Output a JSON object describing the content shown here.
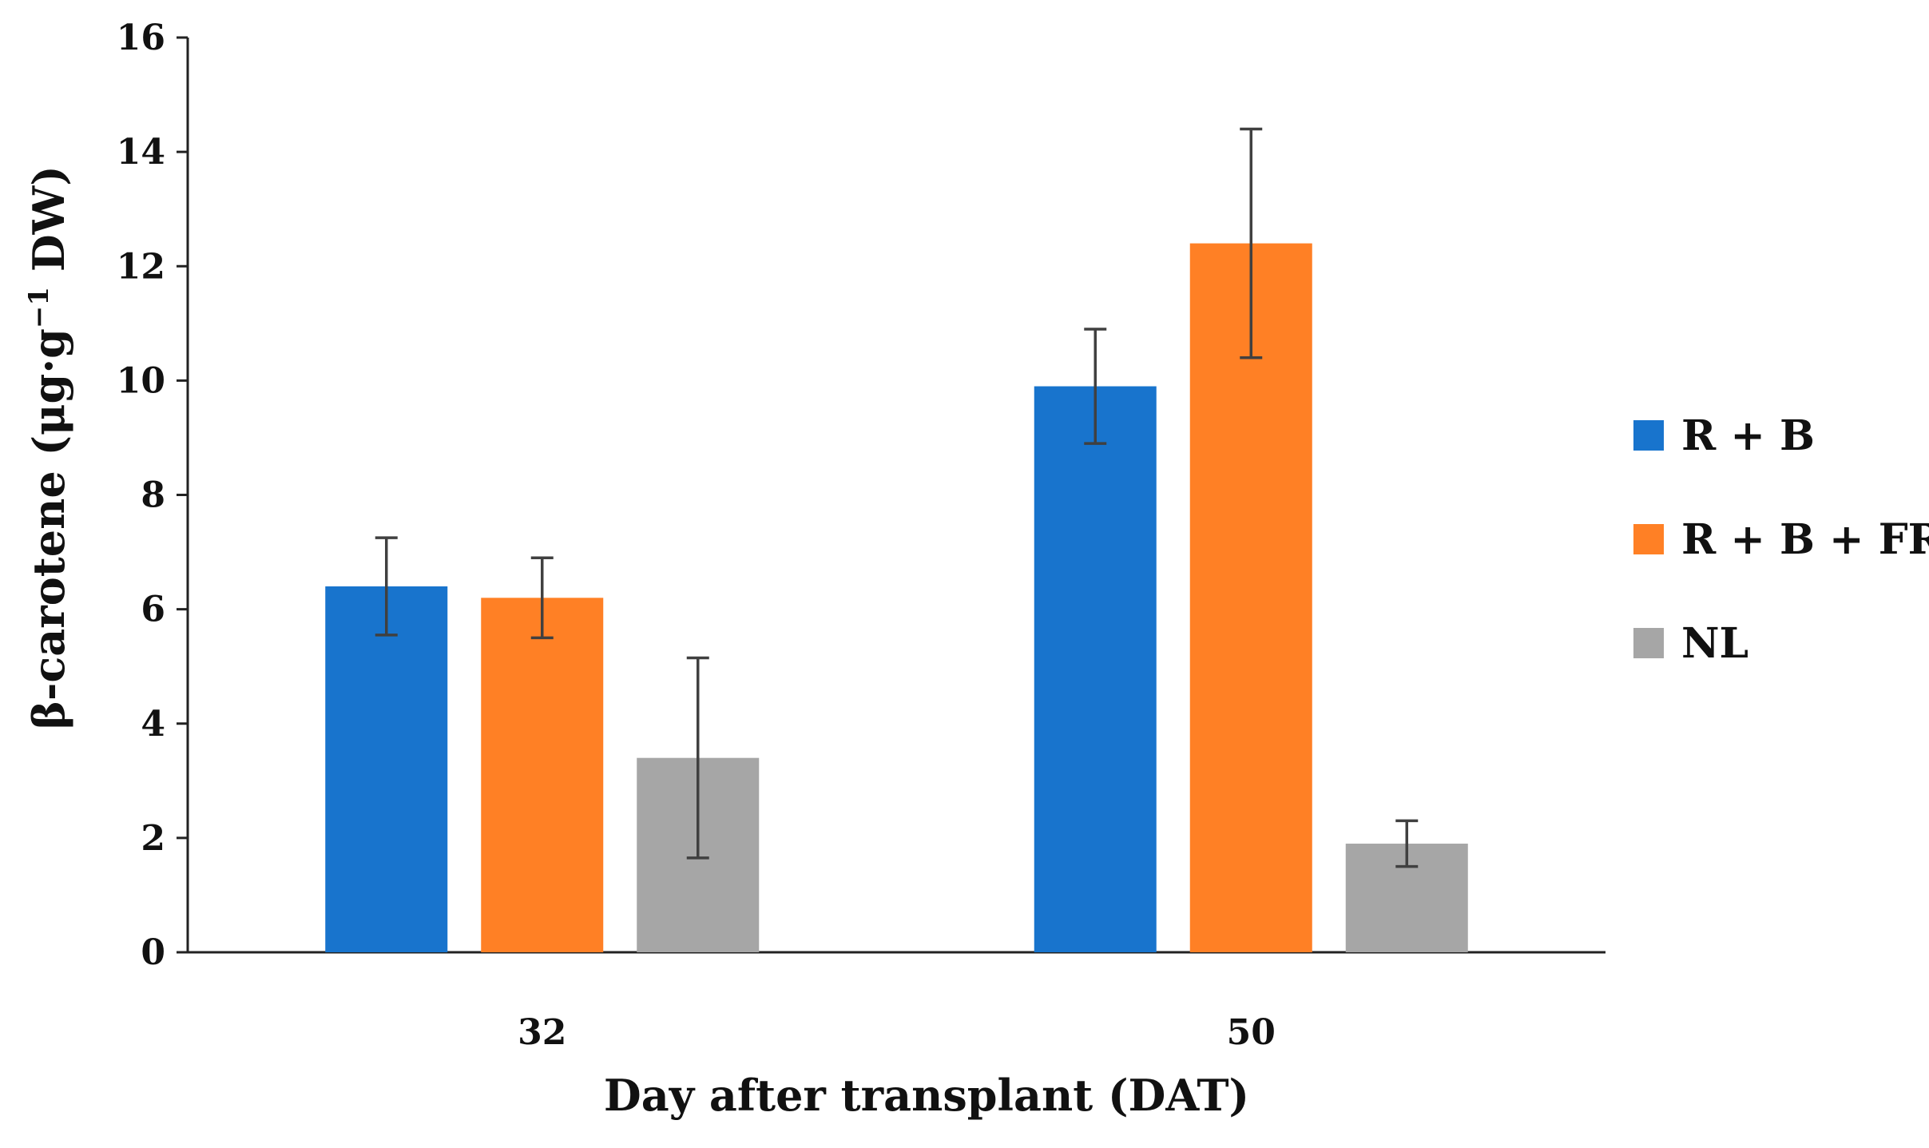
{
  "chart_data": {
    "type": "bar",
    "title": "",
    "xlabel": "Day after transplant (DAT)",
    "ylabel_main": "β-carotene (μg·g",
    "ylabel_sup": "−1",
    "ylabel_tail": " DW)",
    "ylabel": "β-carotene (μg·g−1 DW)",
    "categories": [
      "32",
      "50"
    ],
    "ylim": [
      0,
      16
    ],
    "yticks": [
      0,
      2,
      4,
      6,
      8,
      10,
      12,
      14,
      16
    ],
    "grid": false,
    "legend_position": "right",
    "series": [
      {
        "name": "R + B",
        "color": "#1874CD",
        "values": [
          6.4,
          9.9
        ],
        "errors": [
          0.85,
          1.0
        ]
      },
      {
        "name": "R + B + FR",
        "color": "#FF8025",
        "values": [
          6.2,
          12.4
        ],
        "errors": [
          0.7,
          2.0
        ]
      },
      {
        "name": "NL",
        "color": "#A6A6A6",
        "values": [
          3.4,
          1.9
        ],
        "errors": [
          1.75,
          0.4
        ]
      }
    ]
  }
}
